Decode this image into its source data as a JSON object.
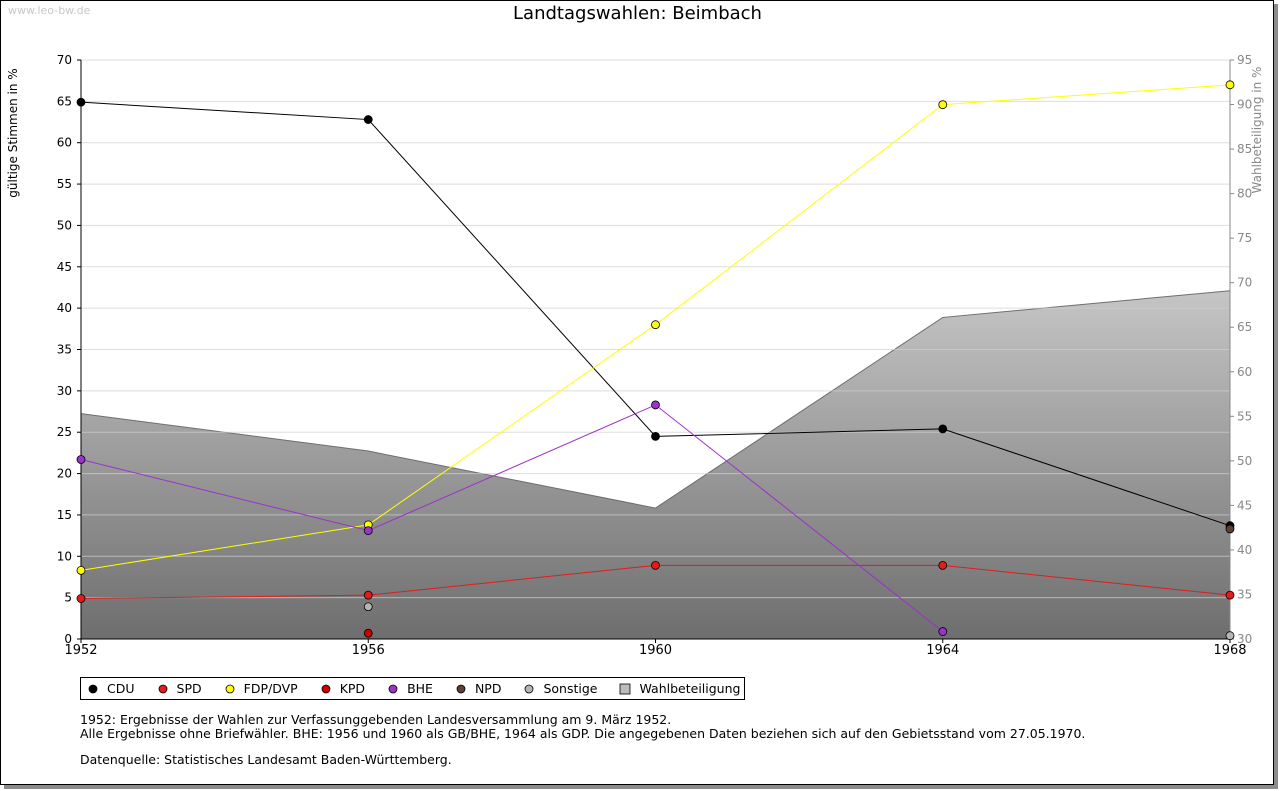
{
  "watermark": "www.leo-bw.de",
  "chart_data": {
    "type": "line",
    "title": "Landtagswahlen: Beimbach",
    "xlabel": "",
    "ylabel": "gültige Stimmen in %",
    "y2label": "Wahlbeteiligung in %",
    "x": [
      "1952",
      "1956",
      "1960",
      "1964",
      "1968"
    ],
    "ylim": [
      0,
      70
    ],
    "y2lim": [
      30,
      95
    ],
    "yticks": [
      "0",
      "5",
      "10",
      "15",
      "20",
      "25",
      "30",
      "35",
      "40",
      "45",
      "50",
      "55",
      "60",
      "65",
      "70"
    ],
    "y2ticks": [
      "30",
      "35",
      "40",
      "45",
      "50",
      "55",
      "60",
      "65",
      "70",
      "75",
      "80",
      "85",
      "90",
      "95"
    ],
    "grid": true,
    "legend_position": "bottom",
    "series": [
      {
        "name": "CDU",
        "color": "#000000",
        "values": [
          64.9,
          62.8,
          24.5,
          25.4,
          13.7
        ]
      },
      {
        "name": "SPD",
        "color": "#e31b1b",
        "values": [
          4.9,
          5.3,
          8.9,
          8.9,
          5.3
        ]
      },
      {
        "name": "FDP/DVP",
        "color": "#ffff00",
        "values": [
          8.3,
          13.8,
          38.0,
          64.6,
          67.0
        ]
      },
      {
        "name": "KPD",
        "color": "#cc0000",
        "values": [
          null,
          0.7,
          null,
          null,
          null
        ]
      },
      {
        "name": "BHE",
        "color": "#9933cc",
        "values": [
          21.7,
          13.1,
          28.3,
          0.9,
          null
        ]
      },
      {
        "name": "NPD",
        "color": "#5c4033",
        "values": [
          null,
          null,
          null,
          null,
          13.3
        ]
      },
      {
        "name": "Sonstige",
        "color": "#b4b4b4",
        "values": [
          null,
          3.9,
          null,
          null,
          0.4
        ]
      }
    ],
    "turnout": {
      "name": "Wahlbeteiligung",
      "values": [
        55.3,
        51.1,
        44.7,
        66.1,
        69.1
      ]
    }
  },
  "notes": {
    "line1": "1952: Ergebnisse der Wahlen zur Verfassunggebenden Landesversammlung am 9. März 1952.",
    "line2": "Alle Ergebnisse ohne Briefwähler. BHE: 1956 und 1960 als GB/BHE, 1964 als GDP. Die angegebenen Daten beziehen sich auf den Gebietsstand vom 27.05.1970.",
    "source": "Datenquelle: Statistisches Landesamt Baden-Württemberg."
  }
}
